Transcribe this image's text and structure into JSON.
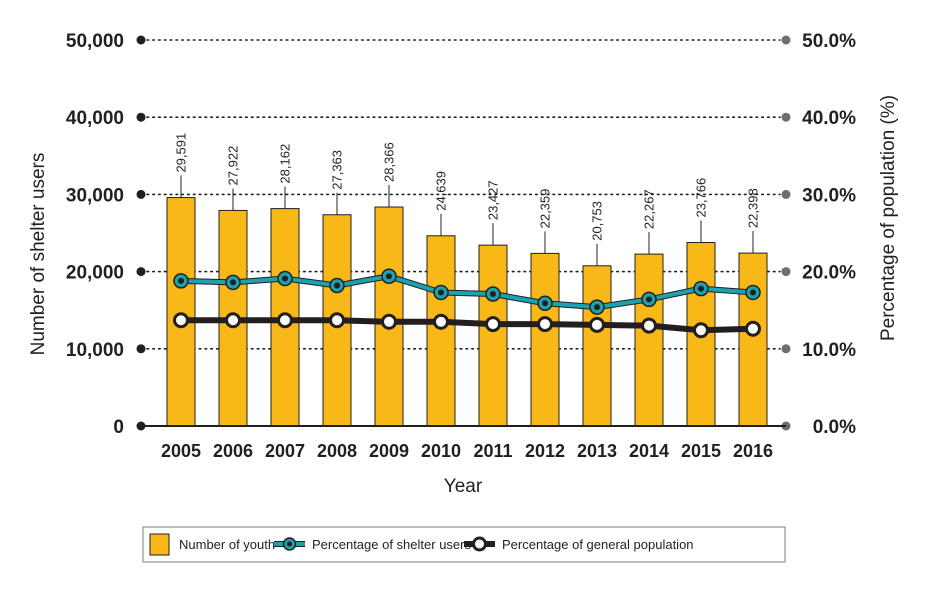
{
  "chart_data": {
    "type": "bar",
    "title": "",
    "xlabel": "Year",
    "ylabel": "Number of shelter users",
    "y2label": "Percentage of population (%)",
    "ylim": [
      0,
      50000
    ],
    "y2lim": [
      0,
      50
    ],
    "grid": true,
    "legend_position": "bottom",
    "categories": [
      "2005",
      "2006",
      "2007",
      "2008",
      "2009",
      "2010",
      "2011",
      "2012",
      "2013",
      "2014",
      "2015",
      "2016"
    ],
    "y_ticks": [
      "0",
      "10,000",
      "20,000",
      "30,000",
      "40,000",
      "50,000"
    ],
    "y2_ticks": [
      "0.0%",
      "10.0%",
      "20.0%",
      "30.0%",
      "40.0%",
      "50.0%"
    ],
    "series": [
      {
        "name": "Number of youth",
        "type": "bar",
        "axis": "left",
        "color": "#F8B818",
        "values": [
          29591,
          27922,
          28162,
          27363,
          28366,
          24639,
          23427,
          22359,
          20753,
          22267,
          23766,
          22398
        ],
        "labels": [
          "29,591",
          "27,922",
          "28,162",
          "27,363",
          "28,366",
          "24,639",
          "23,427",
          "22,359",
          "20,753",
          "22,267",
          "23,766",
          "22,398"
        ]
      },
      {
        "name": "Percentage of shelter users",
        "type": "line",
        "axis": "right",
        "color": "#1AA3AE",
        "values": [
          18.8,
          18.6,
          19.1,
          18.2,
          19.4,
          17.3,
          17.1,
          15.9,
          15.4,
          16.4,
          17.8,
          17.3
        ]
      },
      {
        "name": "Percentage of general population",
        "type": "line",
        "axis": "right",
        "color": "#231F20",
        "values": [
          13.7,
          13.7,
          13.7,
          13.7,
          13.5,
          13.5,
          13.2,
          13.2,
          13.1,
          13.0,
          12.4,
          12.6
        ]
      }
    ]
  }
}
